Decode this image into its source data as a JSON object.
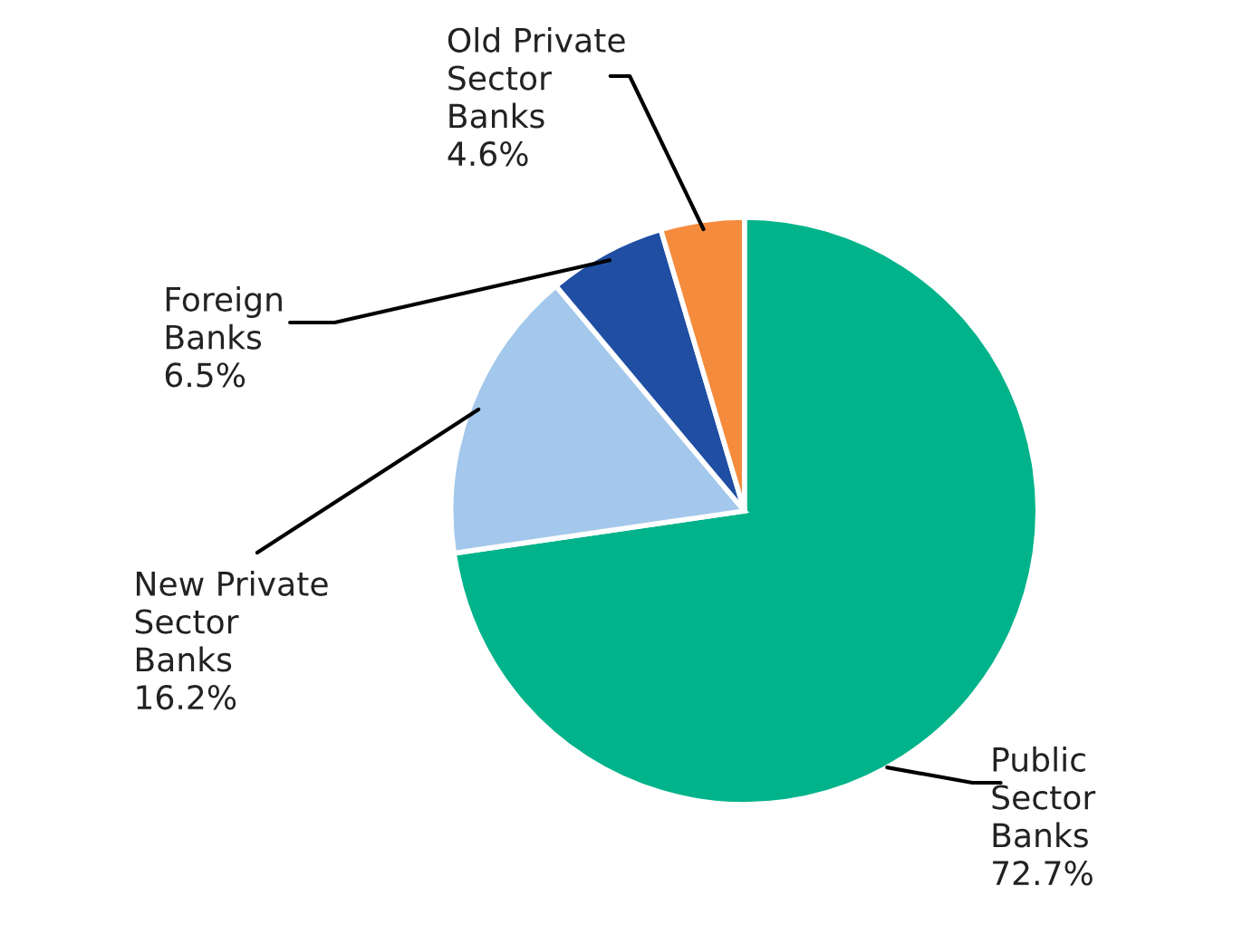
{
  "chart_data": {
    "type": "pie",
    "categories": [
      "Public\nSector\nBanks",
      "New Private\nSector\nBanks",
      "Foreign\nBanks",
      "Old Private\nSector\nBanks"
    ],
    "values": [
      72.7,
      16.2,
      6.5,
      4.6
    ],
    "value_labels": [
      "72.7%",
      "16.2%",
      "6.5%",
      "4.6%"
    ],
    "colors": [
      "#00b38a",
      "#a3c8eb",
      "#1f4ea3",
      "#f58b3c"
    ],
    "legend": false
  }
}
